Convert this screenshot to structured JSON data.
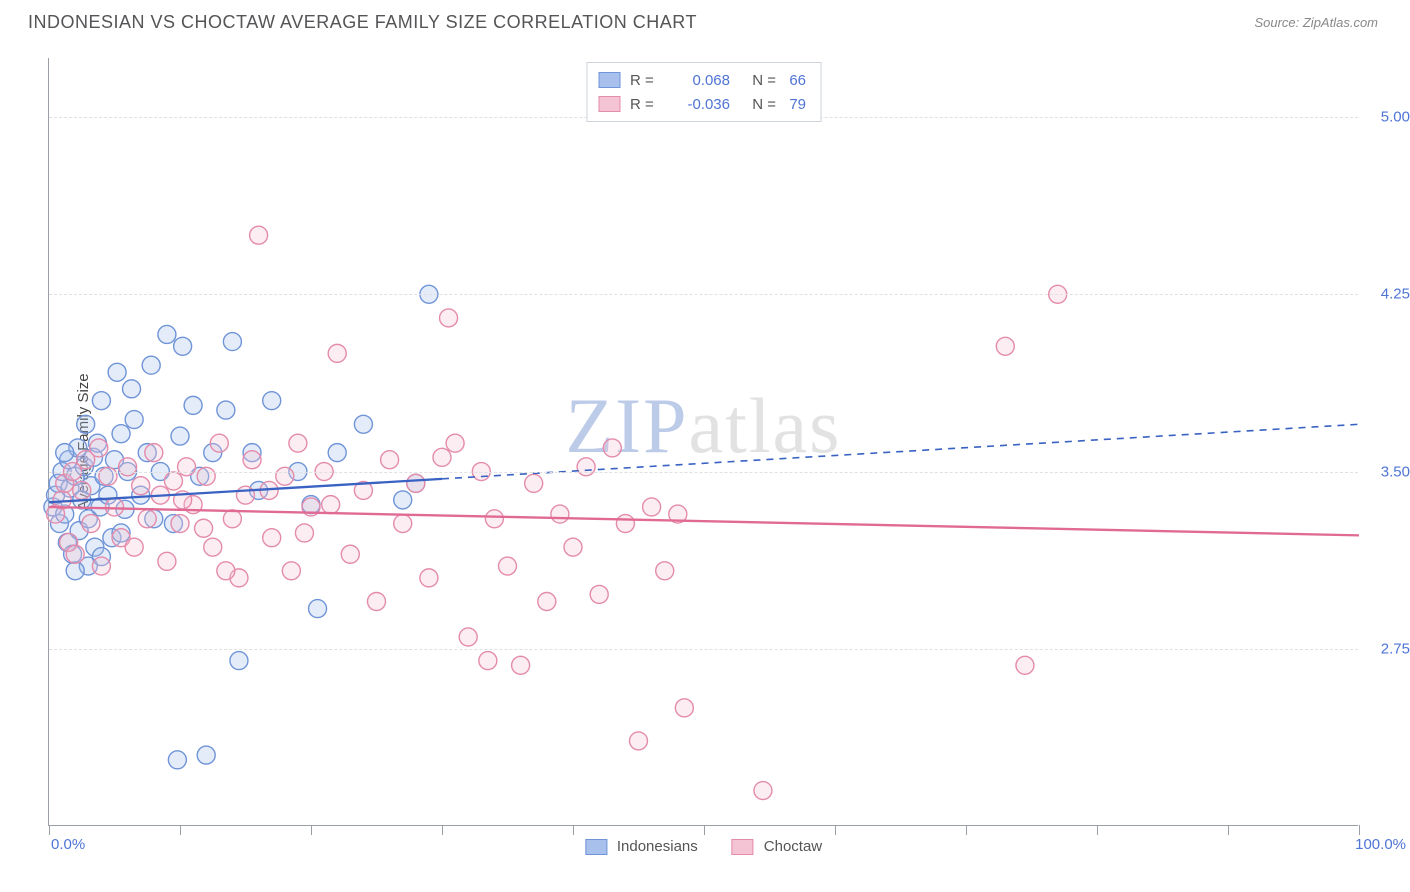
{
  "title": "INDONESIAN VS CHOCTAW AVERAGE FAMILY SIZE CORRELATION CHART",
  "source": "Source: ZipAtlas.com",
  "watermark": {
    "bold": "ZIP",
    "light": "atlas"
  },
  "axis": {
    "y_title": "Average Family Size",
    "x_min_label": "0.0%",
    "x_max_label": "100.0%",
    "x_range": [
      0,
      100
    ],
    "y_range": [
      2.0,
      5.25
    ],
    "y_ticks": [
      2.75,
      3.5,
      4.25,
      5.0
    ],
    "x_tick_positions": [
      0,
      10,
      20,
      30,
      40,
      50,
      60,
      70,
      80,
      90,
      100
    ]
  },
  "style": {
    "grid_color": "#e0e0e0",
    "axis_color": "#9aa0a6",
    "label_color": "#4e74d4",
    "marker_radius": 9,
    "marker_stroke_width": 1.4,
    "marker_fill_opacity": 0.3,
    "line_width": 2.3
  },
  "series": [
    {
      "name": "Indonesians",
      "color_stroke": "#6f94d8",
      "color_fill": "#a7c0ec",
      "line_color": "#3962c3",
      "R": "0.068",
      "N": "66",
      "trend": {
        "x1": 0,
        "y1": 3.37,
        "x2": 100,
        "y2": 3.7,
        "solid_until_x": 30
      },
      "points": [
        [
          0.3,
          3.35
        ],
        [
          0.5,
          3.4
        ],
        [
          0.7,
          3.45
        ],
        [
          0.8,
          3.28
        ],
        [
          1.0,
          3.5
        ],
        [
          1.2,
          3.32
        ],
        [
          1.4,
          3.2
        ],
        [
          1.5,
          3.55
        ],
        [
          1.6,
          3.43
        ],
        [
          1.8,
          3.15
        ],
        [
          2.0,
          3.48
        ],
        [
          2.2,
          3.6
        ],
        [
          2.3,
          3.25
        ],
        [
          2.5,
          3.38
        ],
        [
          2.7,
          3.52
        ],
        [
          2.8,
          3.7
        ],
        [
          3.0,
          3.3
        ],
        [
          3.2,
          3.44
        ],
        [
          3.4,
          3.56
        ],
        [
          3.5,
          3.18
        ],
        [
          3.7,
          3.62
        ],
        [
          3.9,
          3.35
        ],
        [
          4.0,
          3.8
        ],
        [
          4.2,
          3.48
        ],
        [
          4.5,
          3.4
        ],
        [
          4.8,
          3.22
        ],
        [
          5.0,
          3.55
        ],
        [
          5.2,
          3.92
        ],
        [
          5.5,
          3.66
        ],
        [
          5.8,
          3.34
        ],
        [
          6.0,
          3.5
        ],
        [
          6.5,
          3.72
        ],
        [
          7.0,
          3.4
        ],
        [
          7.5,
          3.58
        ],
        [
          8.0,
          3.3
        ],
        [
          8.5,
          3.5
        ],
        [
          9.0,
          4.08
        ],
        [
          9.5,
          3.28
        ],
        [
          10.0,
          3.65
        ],
        [
          10.2,
          4.03
        ],
        [
          11.0,
          3.78
        ],
        [
          11.5,
          3.48
        ],
        [
          12.5,
          3.58
        ],
        [
          13.5,
          3.76
        ],
        [
          14.0,
          4.05
        ],
        [
          15.5,
          3.58
        ],
        [
          16.0,
          3.42
        ],
        [
          17.0,
          3.8
        ],
        [
          19.0,
          3.5
        ],
        [
          20.0,
          3.36
        ],
        [
          20.5,
          2.92
        ],
        [
          22.0,
          3.58
        ],
        [
          24.0,
          3.7
        ],
        [
          27.0,
          3.38
        ],
        [
          28.0,
          3.45
        ],
        [
          29.0,
          4.25
        ],
        [
          9.8,
          2.28
        ],
        [
          12.0,
          2.3
        ],
        [
          14.5,
          2.7
        ],
        [
          3.0,
          3.1
        ],
        [
          2.0,
          3.08
        ],
        [
          1.2,
          3.58
        ],
        [
          4.0,
          3.14
        ],
        [
          6.3,
          3.85
        ],
        [
          7.8,
          3.95
        ],
        [
          5.5,
          3.24
        ]
      ]
    },
    {
      "name": "Choctaw",
      "color_stroke": "#e48bab",
      "color_fill": "#f4c4d5",
      "line_color": "#e06a94",
      "R": "-0.036",
      "N": "79",
      "trend": {
        "x1": 0,
        "y1": 3.35,
        "x2": 100,
        "y2": 3.23,
        "solid_until_x": 100
      },
      "points": [
        [
          0.5,
          3.32
        ],
        [
          1.0,
          3.38
        ],
        [
          1.2,
          3.45
        ],
        [
          1.5,
          3.2
        ],
        [
          1.8,
          3.5
        ],
        [
          2.0,
          3.15
        ],
        [
          2.5,
          3.42
        ],
        [
          2.8,
          3.55
        ],
        [
          3.2,
          3.28
        ],
        [
          3.8,
          3.6
        ],
        [
          4.0,
          3.1
        ],
        [
          4.5,
          3.48
        ],
        [
          5.0,
          3.35
        ],
        [
          5.5,
          3.22
        ],
        [
          6.0,
          3.52
        ],
        [
          6.5,
          3.18
        ],
        [
          7.0,
          3.44
        ],
        [
          7.5,
          3.3
        ],
        [
          8.0,
          3.58
        ],
        [
          8.5,
          3.4
        ],
        [
          9.0,
          3.12
        ],
        [
          9.5,
          3.46
        ],
        [
          10.0,
          3.28
        ],
        [
          10.5,
          3.52
        ],
        [
          11.0,
          3.36
        ],
        [
          12.0,
          3.48
        ],
        [
          12.5,
          3.18
        ],
        [
          13.0,
          3.62
        ],
        [
          14.0,
          3.3
        ],
        [
          14.5,
          3.05
        ],
        [
          15.0,
          3.4
        ],
        [
          15.5,
          3.55
        ],
        [
          16.0,
          4.5
        ],
        [
          17.0,
          3.22
        ],
        [
          18.0,
          3.48
        ],
        [
          18.5,
          3.08
        ],
        [
          19.0,
          3.62
        ],
        [
          20.0,
          3.35
        ],
        [
          21.0,
          3.5
        ],
        [
          22.0,
          4.0
        ],
        [
          23.0,
          3.15
        ],
        [
          24.0,
          3.42
        ],
        [
          25.0,
          2.95
        ],
        [
          26.0,
          3.55
        ],
        [
          27.0,
          3.28
        ],
        [
          28.0,
          3.45
        ],
        [
          29.0,
          3.05
        ],
        [
          30.0,
          3.56
        ],
        [
          30.5,
          4.15
        ],
        [
          31.0,
          3.62
        ],
        [
          32.0,
          2.8
        ],
        [
          33.0,
          3.5
        ],
        [
          33.5,
          2.7
        ],
        [
          34.0,
          3.3
        ],
        [
          35.0,
          3.1
        ],
        [
          36.0,
          2.68
        ],
        [
          37.0,
          3.45
        ],
        [
          38.0,
          2.95
        ],
        [
          39.0,
          3.32
        ],
        [
          40.0,
          3.18
        ],
        [
          41.0,
          3.52
        ],
        [
          42.0,
          2.98
        ],
        [
          43.0,
          3.6
        ],
        [
          44.0,
          3.28
        ],
        [
          45.0,
          2.36
        ],
        [
          46.0,
          3.35
        ],
        [
          47.0,
          3.08
        ],
        [
          48.0,
          3.32
        ],
        [
          48.5,
          2.5
        ],
        [
          54.5,
          2.15
        ],
        [
          73.0,
          4.03
        ],
        [
          74.5,
          2.68
        ],
        [
          77.0,
          4.25
        ],
        [
          10.2,
          3.38
        ],
        [
          11.8,
          3.26
        ],
        [
          13.5,
          3.08
        ],
        [
          16.8,
          3.42
        ],
        [
          19.5,
          3.24
        ],
        [
          21.5,
          3.36
        ]
      ]
    }
  ],
  "legend_bottom": [
    {
      "label": "Indonesians",
      "fill": "#a7c0ec",
      "stroke": "#6f94d8"
    },
    {
      "label": "Choctaw",
      "fill": "#f4c4d5",
      "stroke": "#e48bab"
    }
  ]
}
